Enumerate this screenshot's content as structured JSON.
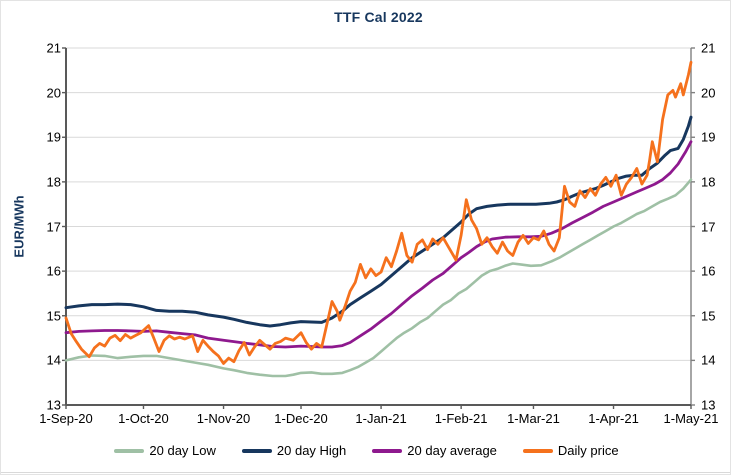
{
  "chart_data": {
    "type": "line",
    "title": "TTF Cal 2022",
    "ylabel": "EUR/MWh",
    "xlabel": "",
    "ylim": [
      13,
      21
    ],
    "y_ticks": [
      21,
      20,
      19,
      18,
      17,
      16,
      15,
      14,
      13
    ],
    "y_axis_sides": [
      "left",
      "right"
    ],
    "grid": "horizontal",
    "legend_position": "bottom",
    "x_domain_days": [
      0,
      242
    ],
    "x_ticks": [
      {
        "label": "1-Sep-20",
        "day": 0
      },
      {
        "label": "1-Oct-20",
        "day": 30
      },
      {
        "label": "1-Nov-20",
        "day": 61
      },
      {
        "label": "1-Dec-20",
        "day": 91
      },
      {
        "label": "1-Jan-21",
        "day": 122
      },
      {
        "label": "1-Feb-21",
        "day": 153
      },
      {
        "label": "1-Mar-21",
        "day": 181
      },
      {
        "label": "1-Apr-21",
        "day": 212
      },
      {
        "label": "1-May-21",
        "day": 242
      }
    ],
    "series": [
      {
        "name": "20 day Low",
        "color": "#9fc0a5",
        "d": [
          0,
          5,
          10,
          15,
          20,
          25,
          30,
          35,
          40,
          45,
          50,
          55,
          61,
          65,
          70,
          75,
          80,
          85,
          88,
          91,
          95,
          99,
          103,
          107,
          110,
          113,
          116,
          119,
          122,
          125,
          128,
          131,
          134,
          137,
          140,
          143,
          146,
          149,
          152,
          155,
          158,
          161,
          164,
          167,
          170,
          173,
          176,
          180,
          184,
          188,
          191,
          194,
          197,
          200,
          203,
          206,
          209,
          212,
          215,
          218,
          221,
          224,
          227,
          230,
          233,
          236,
          239,
          242
        ],
        "v": [
          14.0,
          14.07,
          14.11,
          14.1,
          14.05,
          14.08,
          14.1,
          14.1,
          14.05,
          14.0,
          13.95,
          13.9,
          13.82,
          13.78,
          13.72,
          13.68,
          13.65,
          13.65,
          13.68,
          13.72,
          13.73,
          13.7,
          13.7,
          13.72,
          13.78,
          13.85,
          13.95,
          14.05,
          14.2,
          14.35,
          14.5,
          14.62,
          14.72,
          14.85,
          14.95,
          15.1,
          15.25,
          15.35,
          15.5,
          15.6,
          15.75,
          15.9,
          16.0,
          16.05,
          16.12,
          16.17,
          16.15,
          16.12,
          16.13,
          16.22,
          16.3,
          16.4,
          16.5,
          16.6,
          16.7,
          16.8,
          16.9,
          17.0,
          17.08,
          17.18,
          17.28,
          17.35,
          17.45,
          17.55,
          17.62,
          17.7,
          17.85,
          18.05
        ]
      },
      {
        "name": "20 day High",
        "color": "#17375e",
        "d": [
          0,
          5,
          10,
          15,
          20,
          25,
          30,
          35,
          40,
          45,
          50,
          55,
          61,
          65,
          70,
          75,
          79,
          83,
          87,
          91,
          95,
          99,
          103,
          107,
          110,
          114,
          118,
          122,
          126,
          130,
          134,
          138,
          142,
          146,
          150,
          153,
          156,
          159,
          163,
          167,
          172,
          177,
          182,
          187,
          190,
          193,
          196,
          199,
          202,
          205,
          208,
          211,
          214,
          217,
          220,
          223,
          226,
          229,
          232,
          234,
          237,
          239,
          241,
          242
        ],
        "v": [
          15.18,
          15.22,
          15.25,
          15.25,
          15.26,
          15.25,
          15.2,
          15.12,
          15.1,
          15.1,
          15.08,
          15.02,
          14.97,
          14.92,
          14.85,
          14.8,
          14.77,
          14.8,
          14.84,
          14.87,
          14.86,
          14.85,
          14.95,
          15.1,
          15.25,
          15.4,
          15.55,
          15.7,
          15.9,
          16.1,
          16.3,
          16.45,
          16.6,
          16.75,
          16.95,
          17.1,
          17.28,
          17.4,
          17.45,
          17.48,
          17.5,
          17.5,
          17.5,
          17.52,
          17.55,
          17.6,
          17.68,
          17.75,
          17.8,
          17.85,
          17.92,
          18.0,
          18.08,
          18.13,
          18.15,
          18.15,
          18.3,
          18.42,
          18.6,
          18.7,
          18.75,
          18.95,
          19.25,
          19.45
        ]
      },
      {
        "name": "20 day average",
        "color": "#8e198e",
        "d": [
          0,
          5,
          10,
          15,
          20,
          25,
          30,
          35,
          40,
          45,
          50,
          55,
          61,
          65,
          70,
          75,
          80,
          85,
          91,
          95,
          99,
          103,
          107,
          110,
          114,
          118,
          122,
          126,
          130,
          134,
          138,
          142,
          146,
          150,
          153,
          156,
          159,
          162,
          165,
          170,
          175,
          180,
          184,
          188,
          192,
          196,
          200,
          204,
          208,
          212,
          216,
          220,
          224,
          228,
          231,
          234,
          237,
          240,
          242
        ],
        "v": [
          14.62,
          14.65,
          14.66,
          14.67,
          14.67,
          14.66,
          14.65,
          14.66,
          14.63,
          14.6,
          14.57,
          14.5,
          14.45,
          14.42,
          14.38,
          14.35,
          14.31,
          14.3,
          14.32,
          14.31,
          14.3,
          14.3,
          14.33,
          14.4,
          14.55,
          14.7,
          14.88,
          15.05,
          15.25,
          15.45,
          15.62,
          15.8,
          15.95,
          16.15,
          16.3,
          16.42,
          16.55,
          16.65,
          16.72,
          16.76,
          16.77,
          16.77,
          16.78,
          16.85,
          16.95,
          17.08,
          17.2,
          17.32,
          17.45,
          17.55,
          17.65,
          17.75,
          17.85,
          17.95,
          18.05,
          18.2,
          18.4,
          18.68,
          18.9
        ]
      },
      {
        "name": "Daily price",
        "color": "#f5711d",
        "d": [
          0,
          2,
          4,
          6,
          9,
          11,
          13,
          15,
          17,
          19,
          21,
          23,
          25,
          27,
          29,
          32,
          34,
          36,
          38,
          40,
          42,
          44,
          46,
          49,
          51,
          53,
          55,
          57,
          59,
          61,
          63,
          65,
          67,
          69,
          71,
          73,
          75,
          77,
          79,
          81,
          83,
          85,
          88,
          91,
          93,
          95,
          97,
          99,
          101,
          103,
          105,
          106,
          108,
          110,
          112,
          114,
          116,
          118,
          120,
          122,
          124,
          126,
          128,
          130,
          132,
          134,
          136,
          138,
          140,
          142,
          144,
          146,
          148,
          150,
          151,
          153,
          155,
          157,
          159,
          161,
          163,
          165,
          167,
          169,
          171,
          173,
          175,
          177,
          179,
          181,
          183,
          185,
          187,
          189,
          191,
          193,
          195,
          197,
          199,
          201,
          203,
          205,
          207,
          209,
          211,
          213,
          215,
          217,
          219,
          221,
          223,
          225,
          226,
          227,
          229,
          231,
          233,
          235,
          236,
          238,
          239,
          241,
          242
        ],
        "v": [
          14.95,
          14.6,
          14.42,
          14.25,
          14.08,
          14.28,
          14.38,
          14.32,
          14.5,
          14.56,
          14.44,
          14.58,
          14.5,
          14.56,
          14.62,
          14.78,
          14.5,
          14.2,
          14.45,
          14.55,
          14.48,
          14.52,
          14.48,
          14.55,
          14.2,
          14.45,
          14.32,
          14.2,
          14.1,
          13.93,
          14.05,
          13.97,
          14.22,
          14.4,
          14.12,
          14.3,
          14.45,
          14.35,
          14.25,
          14.38,
          14.42,
          14.5,
          14.45,
          14.62,
          14.4,
          14.25,
          14.38,
          14.3,
          14.8,
          15.32,
          15.1,
          14.9,
          15.2,
          15.55,
          15.75,
          16.15,
          15.85,
          16.05,
          15.9,
          15.98,
          16.3,
          16.1,
          16.45,
          16.85,
          16.35,
          16.2,
          16.6,
          16.7,
          16.48,
          16.72,
          16.6,
          16.75,
          16.55,
          16.35,
          16.25,
          16.8,
          17.6,
          17.15,
          16.95,
          16.6,
          16.75,
          16.55,
          16.4,
          16.65,
          16.45,
          16.35,
          16.65,
          16.8,
          16.62,
          16.75,
          16.7,
          16.9,
          16.6,
          16.45,
          16.75,
          17.9,
          17.55,
          17.45,
          17.8,
          17.65,
          17.85,
          17.7,
          17.95,
          18.1,
          17.9,
          18.15,
          17.7,
          17.95,
          18.1,
          18.3,
          17.95,
          18.15,
          18.5,
          18.9,
          18.45,
          19.4,
          19.95,
          20.05,
          19.9,
          20.2,
          19.95,
          20.4,
          20.68
        ]
      }
    ]
  },
  "style": {
    "grid_color": "#d9d9d9",
    "axis_dark": "#595959",
    "axis_right": "#808080",
    "title_color": "#17375e"
  }
}
